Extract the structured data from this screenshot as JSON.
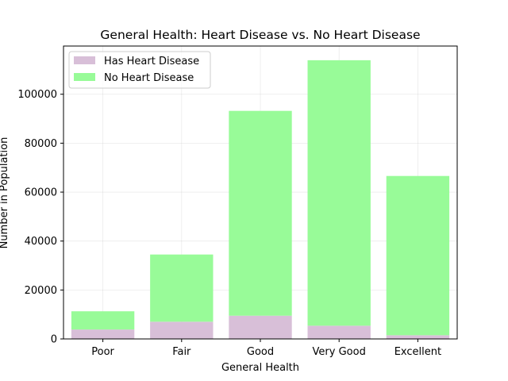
{
  "chart_data": {
    "type": "bar",
    "stacked": true,
    "title": "General Health: Heart Disease vs. No Heart Disease",
    "xlabel": "General Health",
    "ylabel": "Number in Population",
    "categories": [
      "Poor",
      "Fair",
      "Good",
      "Very Good",
      "Excellent"
    ],
    "series": [
      {
        "name": "Has Heart Disease",
        "color": "#d8bfd8",
        "values": [
          3850,
          7030,
          9500,
          5400,
          1500
        ]
      },
      {
        "name": "No Heart Disease",
        "color": "#98fb98",
        "values": [
          7450,
          27470,
          83700,
          108500,
          65100
        ]
      }
    ],
    "ylim": [
      0,
      119700
    ],
    "yticks": [
      0,
      20000,
      40000,
      60000,
      80000,
      100000
    ],
    "grid": true,
    "legend_position": "upper-left"
  }
}
